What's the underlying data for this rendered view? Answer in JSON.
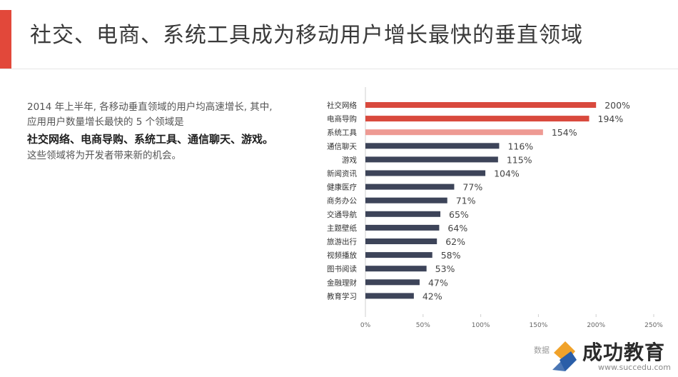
{
  "header": {
    "title": "社交、电商、系统工具成为移动用户增长最快的垂直领域"
  },
  "intro": {
    "line1": "2014 年上半年, 各移动垂直领域的用户均高速增长, 其中,",
    "line2": "应用用户数量增长最快的 5 个领域是",
    "highlight": "社交网络、电商导购、系统工具、通信聊天、游戏。",
    "line3": "这些领域将为开发者带来新的机会。"
  },
  "chart_data": {
    "type": "bar",
    "orientation": "horizontal",
    "title": "",
    "xlabel": "",
    "ylabel": "",
    "xlim": [
      0,
      250
    ],
    "x_ticks": [
      "0%",
      "50%",
      "100%",
      "150%",
      "200%",
      "250%"
    ],
    "x_tick_values": [
      0,
      50,
      100,
      150,
      200,
      250
    ],
    "categories": [
      "社交网络",
      "电商导购",
      "系统工具",
      "通信聊天",
      "游戏",
      "新闻资讯",
      "健康医疗",
      "商务办公",
      "交通导航",
      "主题壁纸",
      "旅游出行",
      "视频播放",
      "图书阅读",
      "金融理财",
      "教育学习"
    ],
    "values": [
      200,
      194,
      154,
      116,
      115,
      104,
      77,
      71,
      65,
      64,
      62,
      58,
      53,
      47,
      42
    ],
    "value_labels": [
      "200%",
      "194%",
      "154%",
      "116%",
      "115%",
      "104%",
      "77%",
      "71%",
      "65%",
      "64%",
      "62%",
      "58%",
      "53%",
      "47%",
      "42%"
    ],
    "bar_colors": [
      "#d9493d",
      "#d9493d",
      "#ee9a93",
      "#3d4459",
      "#3d4459",
      "#3d4459",
      "#3d4459",
      "#3d4459",
      "#3d4459",
      "#3d4459",
      "#3d4459",
      "#3d4459",
      "#3d4459",
      "#3d4459",
      "#3d4459"
    ],
    "grid": false
  },
  "watermark": {
    "source_text": "数据",
    "brand": "成功教育",
    "url": "www.succedu.com"
  },
  "colors": {
    "accent": "#e2483a",
    "highlight_bar": "#d9493d",
    "highlight_bar_light": "#ee9a93",
    "default_bar": "#3d4459",
    "axis": "#cfcfcf"
  }
}
